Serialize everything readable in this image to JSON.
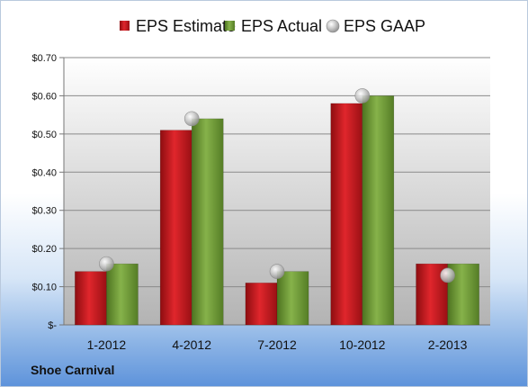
{
  "company": "Shoe Carnival",
  "chart_data": {
    "type": "bar",
    "categories": [
      "1-2012",
      "4-2012",
      "7-2012",
      "10-2012",
      "2-2013"
    ],
    "series": [
      {
        "name": "EPS Estimate",
        "kind": "bar",
        "color": "#c0181e",
        "values": [
          0.14,
          0.51,
          0.11,
          0.58,
          0.16
        ]
      },
      {
        "name": "EPS Actual",
        "kind": "bar",
        "color": "#6b9a32",
        "values": [
          0.16,
          0.54,
          0.14,
          0.6,
          0.16
        ]
      },
      {
        "name": "EPS GAAP",
        "kind": "marker",
        "color": "#b8b8b8",
        "values": [
          0.16,
          0.54,
          0.14,
          0.6,
          0.13
        ]
      }
    ],
    "yticks": [
      "$-",
      "$0.10",
      "$0.20",
      "$0.30",
      "$0.40",
      "$0.50",
      "$0.60",
      "$0.70"
    ],
    "ylim": [
      0,
      0.7
    ],
    "grid": true,
    "legend": "top-center"
  }
}
